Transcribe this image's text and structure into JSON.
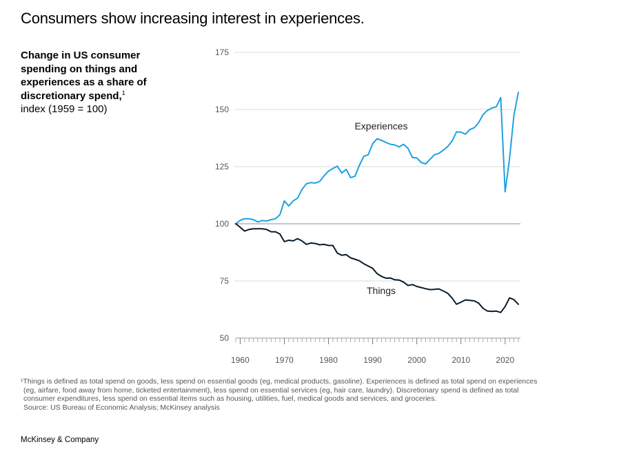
{
  "headline": "Consumers show increasing interest in experiences.",
  "subtitle": {
    "bold": "Change in US consumer spending on things and experiences as a share of discretionary spend,",
    "footnote_mark": "1",
    "normal": "index (1959 = 100)"
  },
  "footnote": {
    "line1": "¹Things is defined as total spend on goods, less spend on essential goods (eg, medical products, gasoline). Experiences is defined as total spend on experiences",
    "line2": "(eg, airfare, food away from home, ticketed entertainment), less spend on essential services (eg, hair care, laundry). Discretionary spend is defined as total",
    "line3": "consumer expenditures, less spend on essential items such as housing, utilities, fuel, medical goods and services, and groceries.",
    "source": "Source: US Bureau of Economic Analysis; McKinsey analysis"
  },
  "brand": "McKinsey & Company",
  "colors": {
    "experiences": "#1ba1e2",
    "things": "#051c2c",
    "grid": "#d9d9d9",
    "baseline": "#8c8c8c"
  },
  "chart_data": {
    "type": "line",
    "x": [
      1959,
      1960,
      1961,
      1962,
      1963,
      1964,
      1965,
      1966,
      1967,
      1968,
      1969,
      1970,
      1971,
      1972,
      1973,
      1974,
      1975,
      1976,
      1977,
      1978,
      1979,
      1980,
      1981,
      1982,
      1983,
      1984,
      1985,
      1986,
      1987,
      1988,
      1989,
      1990,
      1991,
      1992,
      1993,
      1994,
      1995,
      1996,
      1997,
      1998,
      1999,
      2000,
      2001,
      2002,
      2003,
      2004,
      2005,
      2006,
      2007,
      2008,
      2009,
      2010,
      2011,
      2012,
      2013,
      2014,
      2015,
      2016,
      2017,
      2018,
      2019,
      2020,
      2021,
      2022,
      2023
    ],
    "series": [
      {
        "name": "Experiences",
        "values": [
          100,
          101.5,
          102.2,
          102.2,
          101.8,
          100.8,
          101.4,
          101.2,
          101.8,
          102.2,
          104,
          110,
          107.8,
          110,
          111.2,
          115,
          117.5,
          118,
          117.8,
          118.5,
          121,
          123,
          124.2,
          125.2,
          122.2,
          123.8,
          120.2,
          120.8,
          125.6,
          129.5,
          130.2,
          135,
          137.2,
          136.5,
          135.6,
          134.8,
          134.5,
          133.6,
          134.8,
          133,
          129,
          128.8,
          126.8,
          126.2,
          128.2,
          130.2,
          130.8,
          132.2,
          133.8,
          136.2,
          140.2,
          140.1,
          139.2,
          141.2,
          142,
          144.2,
          147.8,
          149.6,
          150.6,
          151.2,
          155.2,
          114,
          128.5,
          147.5,
          157.5
        ]
      },
      {
        "name": "Things",
        "values": [
          100,
          98.5,
          96.8,
          97.5,
          97.8,
          97.8,
          97.8,
          97.5,
          96.5,
          96.5,
          95.5,
          92.2,
          92.8,
          92.5,
          93.5,
          92.5,
          91,
          91.6,
          91.4,
          90.8,
          91,
          90.5,
          90.5,
          87.2,
          86.2,
          86.5,
          85.1,
          84.5,
          83.8,
          82.5,
          81.5,
          80.5,
          78.2,
          77,
          76.2,
          76.3,
          75.5,
          75.4,
          74.5,
          73,
          73.4,
          72.6,
          72.1,
          71.6,
          71.2,
          71.3,
          71.5,
          70.6,
          69.6,
          67.5,
          64.8,
          65.7,
          66.7,
          66.5,
          66.3,
          65.3,
          63,
          61.8,
          61.7,
          61.8,
          61.2,
          63.8,
          67.6,
          66.8,
          64.8
        ]
      }
    ],
    "series_labels": [
      "Experiences",
      "Things"
    ],
    "ylim": [
      50,
      175
    ],
    "yticks": [
      175,
      150,
      125,
      100,
      75,
      50
    ],
    "xlim": [
      1959,
      2023
    ],
    "xticks": [
      1960,
      1970,
      1980,
      1990,
      2000,
      2010,
      2020
    ],
    "baseline": 100,
    "grid": true
  }
}
